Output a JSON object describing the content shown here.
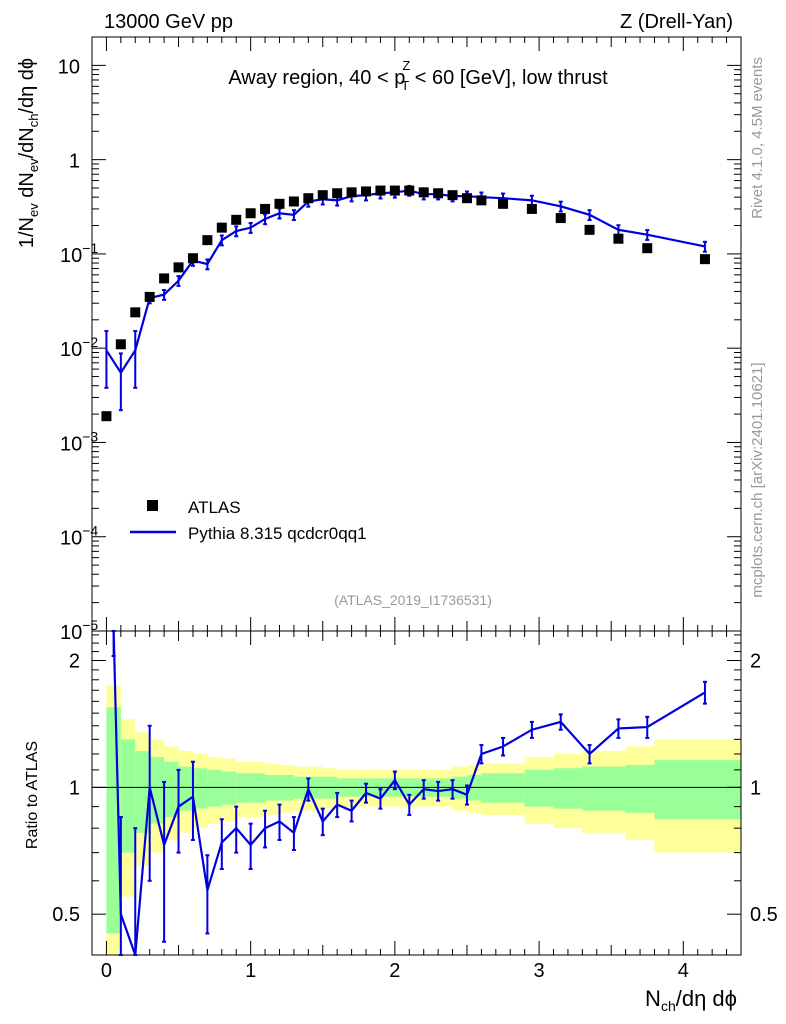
{
  "header": {
    "left": "13000 GeV pp",
    "right": "Z (Drell-Yan)"
  },
  "side_text": {
    "rivet": "Rivet 4.1.0,  4.5M events",
    "mcplots": "mcplots.cern.ch [arXiv:2401.10621]"
  },
  "chart_data": {
    "type": "scatter",
    "title": "Away region, 40 < pTZ < 60 [GeV], low thrust",
    "analysis_id": "(ATLAS_2019_I1736531)",
    "xlabel": "Nch/dη dϕ",
    "ylabel": "1/Nev dNev/dNch/dη dϕ",
    "ratio_ylabel": "Ratio to ATLAS",
    "xlim": [
      -0.1,
      4.4
    ],
    "ylim": [
      1e-05,
      20
    ],
    "yscale": "log",
    "ratio_ylim": [
      0.4,
      2.35
    ],
    "x_ticks": [
      "0",
      "1",
      "2",
      "3",
      "4"
    ],
    "y_ticks": [
      "10",
      "1",
      "10^-1",
      "10^-2",
      "10^-3",
      "10^-4",
      "10^-5"
    ],
    "ratio_ticks": [
      "0.5",
      "1",
      "2"
    ],
    "legend": {
      "position": "lower-left",
      "entries": [
        "ATLAS",
        "Pythia 8.315 qcdcr0qq1"
      ]
    },
    "data": {
      "name": "ATLAS",
      "x": [
        0.0,
        0.1,
        0.2,
        0.3,
        0.4,
        0.5,
        0.6,
        0.7,
        0.8,
        0.9,
        1.0,
        1.1,
        1.2,
        1.3,
        1.4,
        1.5,
        1.6,
        1.7,
        1.8,
        1.9,
        2.0,
        2.1,
        2.2,
        2.3,
        2.4,
        2.5,
        2.6,
        2.75,
        2.95,
        3.15,
        3.35,
        3.55,
        3.75,
        4.15
      ],
      "y": [
        0.0019,
        0.011,
        0.024,
        0.035,
        0.055,
        0.072,
        0.09,
        0.14,
        0.19,
        0.23,
        0.27,
        0.3,
        0.34,
        0.36,
        0.39,
        0.42,
        0.44,
        0.45,
        0.46,
        0.47,
        0.47,
        0.47,
        0.45,
        0.44,
        0.42,
        0.39,
        0.37,
        0.34,
        0.3,
        0.24,
        0.18,
        0.145,
        0.115,
        0.088
      ]
    },
    "mc": {
      "name": "Pythia 8.315 qcdcr0qq1",
      "color": "#0000dd",
      "x": [
        0.0,
        0.1,
        0.2,
        0.3,
        0.4,
        0.5,
        0.6,
        0.7,
        0.8,
        0.9,
        1.0,
        1.1,
        1.2,
        1.3,
        1.4,
        1.5,
        1.6,
        1.7,
        1.8,
        1.9,
        2.0,
        2.1,
        2.2,
        2.3,
        2.4,
        2.5,
        2.6,
        2.75,
        2.95,
        3.15,
        3.35,
        3.55,
        3.75,
        4.15
      ],
      "y": [
        0.0095,
        0.0055,
        0.0095,
        0.034,
        0.037,
        0.052,
        0.085,
        0.078,
        0.14,
        0.175,
        0.19,
        0.235,
        0.27,
        0.26,
        0.36,
        0.38,
        0.37,
        0.41,
        0.42,
        0.44,
        0.45,
        0.47,
        0.43,
        0.43,
        0.41,
        0.41,
        0.4,
        0.39,
        0.37,
        0.32,
        0.26,
        0.18,
        0.16,
        0.12
      ],
      "y_err": [
        0.005,
        0.004,
        0.005,
        0.006,
        0.008,
        0.01,
        0.012,
        0.014,
        0.018,
        0.02,
        0.022,
        0.025,
        0.028,
        0.03,
        0.025,
        0.025,
        0.022,
        0.022,
        0.02,
        0.02,
        0.02,
        0.02,
        0.02,
        0.02,
        0.02,
        0.02,
        0.02,
        0.02,
        0.02,
        0.018,
        0.016,
        0.013,
        0.012,
        0.01
      ]
    },
    "ratio": {
      "x": [
        0.05,
        0.1,
        0.2,
        0.3,
        0.4,
        0.5,
        0.6,
        0.7,
        0.8,
        0.9,
        1.0,
        1.1,
        1.2,
        1.3,
        1.4,
        1.5,
        1.6,
        1.7,
        1.8,
        1.9,
        2.0,
        2.1,
        2.2,
        2.3,
        2.4,
        2.5,
        2.6,
        2.75,
        2.95,
        3.15,
        3.35,
        3.55,
        3.75,
        4.15
      ],
      "y": [
        2.35,
        0.5,
        0.4,
        1.0,
        0.73,
        0.9,
        0.95,
        0.57,
        0.74,
        0.8,
        0.73,
        0.8,
        0.83,
        0.78,
        0.99,
        0.83,
        0.91,
        0.88,
        0.97,
        0.94,
        1.04,
        0.91,
        0.99,
        0.98,
        0.99,
        0.96,
        1.2,
        1.25,
        1.37,
        1.43,
        1.2,
        1.38,
        1.39,
        1.68
      ],
      "y_err": [
        0.3,
        0.35,
        0.4,
        0.4,
        0.3,
        0.2,
        0.2,
        0.12,
        0.1,
        0.1,
        0.09,
        0.08,
        0.08,
        0.07,
        0.06,
        0.06,
        0.06,
        0.05,
        0.05,
        0.05,
        0.05,
        0.05,
        0.05,
        0.05,
        0.05,
        0.05,
        0.06,
        0.06,
        0.06,
        0.06,
        0.06,
        0.07,
        0.08,
        0.1
      ]
    },
    "bands": {
      "edges": [
        0.0,
        0.1,
        0.2,
        0.3,
        0.4,
        0.5,
        0.6,
        0.7,
        0.8,
        0.9,
        1.0,
        1.1,
        1.2,
        1.3,
        1.4,
        1.5,
        1.6,
        1.7,
        1.8,
        1.9,
        2.0,
        2.1,
        2.2,
        2.3,
        2.4,
        2.5,
        2.6,
        2.9,
        3.1,
        3.3,
        3.6,
        3.8,
        4.5
      ],
      "yellow": [
        0.75,
        0.45,
        0.35,
        0.3,
        0.25,
        0.22,
        0.2,
        0.18,
        0.17,
        0.15,
        0.15,
        0.14,
        0.13,
        0.12,
        0.12,
        0.11,
        0.1,
        0.1,
        0.1,
        0.1,
        0.1,
        0.1,
        0.1,
        0.1,
        0.12,
        0.13,
        0.14,
        0.18,
        0.2,
        0.22,
        0.25,
        0.3
      ],
      "green": [
        0.55,
        0.3,
        0.22,
        0.18,
        0.15,
        0.12,
        0.11,
        0.1,
        0.09,
        0.08,
        0.08,
        0.07,
        0.07,
        0.06,
        0.06,
        0.06,
        0.05,
        0.05,
        0.05,
        0.05,
        0.05,
        0.05,
        0.05,
        0.05,
        0.06,
        0.07,
        0.08,
        0.1,
        0.11,
        0.12,
        0.13,
        0.16
      ]
    }
  }
}
